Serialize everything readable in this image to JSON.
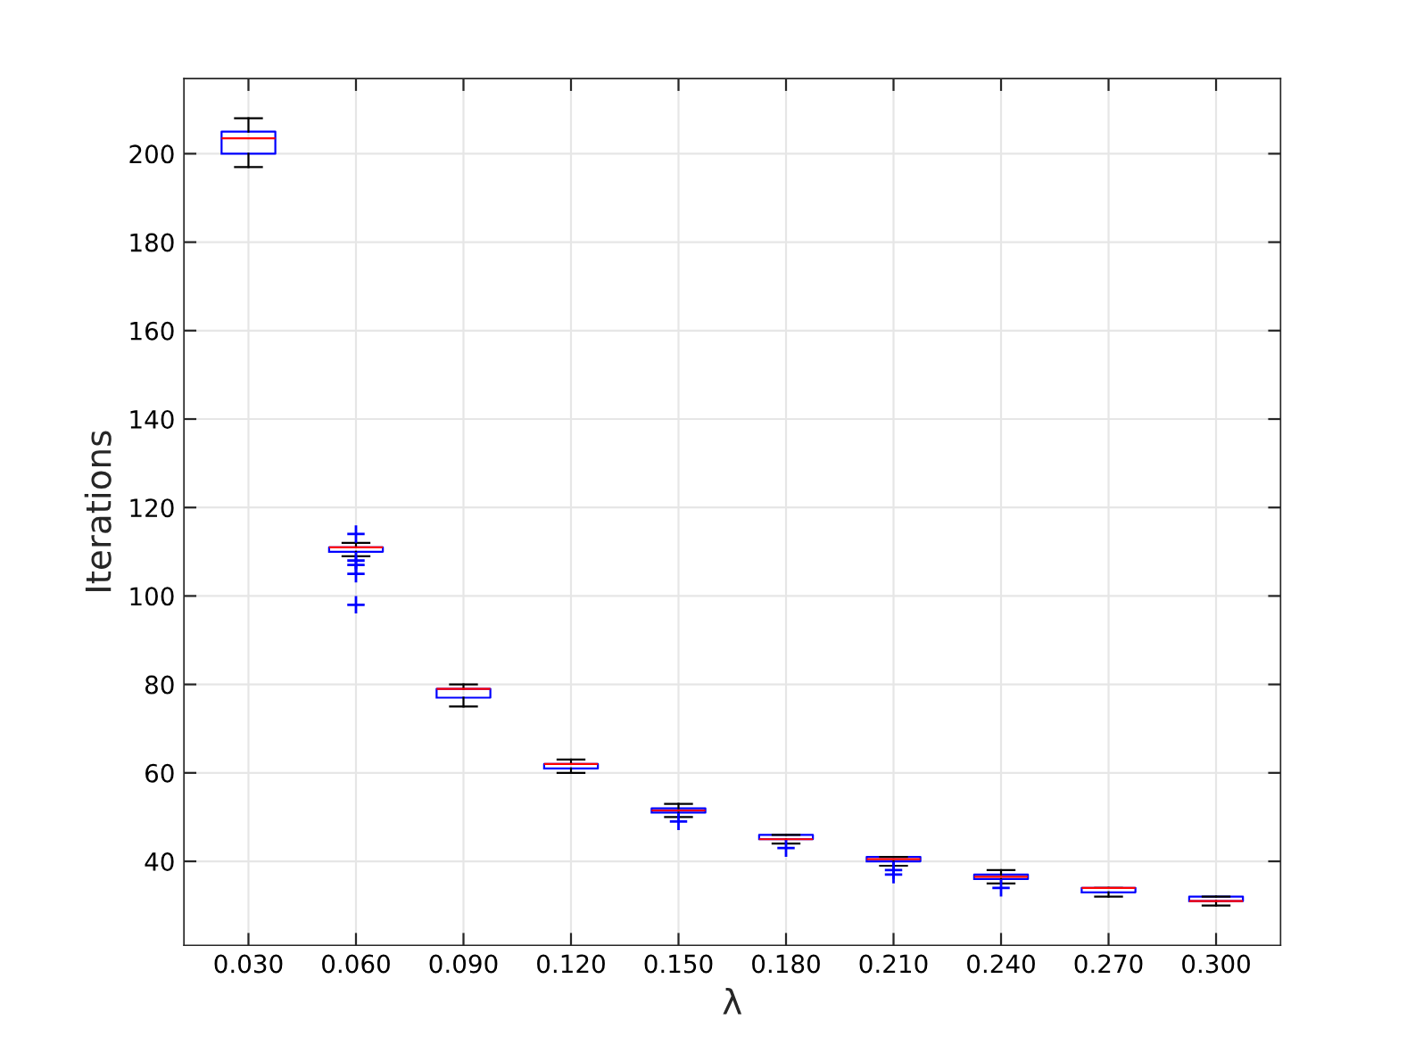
{
  "chart_data": {
    "type": "box",
    "xlabel": "λ",
    "ylabel": "Iterations",
    "categories": [
      "0.030",
      "0.060",
      "0.090",
      "0.120",
      "0.150",
      "0.180",
      "0.210",
      "0.240",
      "0.270",
      "0.300"
    ],
    "color": "#0000ff",
    "boxes": [
      {
        "low": 197,
        "q1": 200,
        "median": 203.5,
        "q3": 205,
        "high": 208
      },
      {
        "low": 109,
        "q1": 110,
        "median": 111,
        "q3": 111,
        "high": 112,
        "outliers": [
          114,
          108,
          107,
          105,
          98
        ]
      },
      {
        "low": 75,
        "q1": 77,
        "median": 79,
        "q3": 79,
        "high": 80
      },
      {
        "low": 60,
        "q1": 61,
        "median": 62,
        "q3": 62,
        "high": 63
      },
      {
        "low": 50,
        "q1": 51,
        "median": 51.5,
        "q3": 52,
        "high": 53,
        "outliers": [
          49
        ]
      },
      {
        "low": 44,
        "q1": 45,
        "median": 45,
        "q3": 46,
        "high": 46,
        "outliers": [
          43
        ]
      },
      {
        "low": 39,
        "q1": 40,
        "median": 40.5,
        "q3": 41,
        "high": 41,
        "outliers": [
          38,
          37
        ]
      },
      {
        "low": 35,
        "q1": 36,
        "median": 36.5,
        "q3": 37,
        "high": 38,
        "outliers": [
          34
        ]
      },
      {
        "low": 32,
        "q1": 33,
        "median": 34,
        "q3": 34,
        "high": 34
      },
      {
        "low": 30,
        "q1": 31,
        "median": 31,
        "q3": 32,
        "high": 32
      }
    ],
    "ylim": [
      21,
      217
    ],
    "yticks": [
      40,
      60,
      80,
      100,
      120,
      140,
      160,
      180,
      200
    ],
    "grid": true
  }
}
